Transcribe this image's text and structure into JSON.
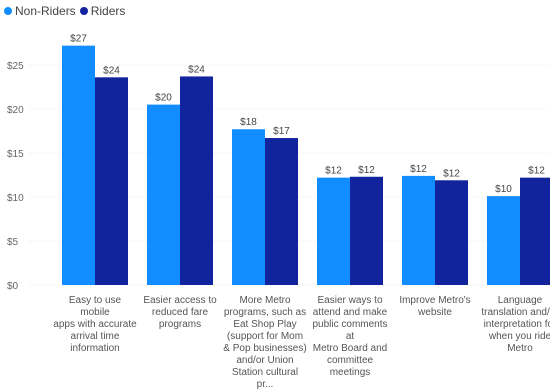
{
  "legend": [
    {
      "name": "Non-Riders",
      "color": "#118DFF"
    },
    {
      "name": "Riders",
      "color": "#12239E"
    }
  ],
  "chart_data": {
    "type": "bar",
    "categories": [
      "Easy to use mobile apps with accurate arrival time information",
      "Easier access to reduced fare programs",
      "More Metro programs, such as Eat Shop Play (support for Mom & Pop businesses) and/or Union Station cultural pr...",
      "Easier ways to attend and make public comments at Metro Board and committee meetings",
      "Improve Metro's website",
      "Language translation and/or interpretation for when you ride Metro"
    ],
    "category_lines": [
      [
        "Easy to use mobile",
        "apps with accurate",
        "arrival time",
        "information"
      ],
      [
        "Easier access to",
        "reduced fare",
        "programs"
      ],
      [
        "More Metro",
        "programs, such as",
        "Eat Shop Play",
        "(support for Mom",
        "& Pop businesses)",
        "and/or Union",
        "Station cultural pr..."
      ],
      [
        "Easier ways to",
        "attend and make",
        "public comments at",
        "Metro Board and",
        "committee",
        "meetings"
      ],
      [
        "Improve Metro's",
        "website"
      ],
      [
        "Language",
        "translation and/or",
        "interpretation for",
        "when you ride",
        "Metro"
      ]
    ],
    "series": [
      {
        "name": "Non-Riders",
        "color": "#118DFF",
        "values": [
          27.2,
          20.5,
          17.7,
          12.2,
          12.4,
          10.1
        ],
        "labels": [
          "$27",
          "$20",
          "$18",
          "$12",
          "$12",
          "$10"
        ]
      },
      {
        "name": "Riders",
        "color": "#12239E",
        "values": [
          23.6,
          23.7,
          16.7,
          12.3,
          11.9,
          12.2
        ],
        "labels": [
          "$24",
          "$24",
          "$17",
          "$12",
          "$12",
          "$12"
        ]
      }
    ],
    "yticks": [
      0,
      5,
      10,
      15,
      20,
      25
    ],
    "ytick_labels": [
      "$0",
      "$5",
      "$10",
      "$15",
      "$20",
      "$25"
    ],
    "ylim": [
      0,
      30
    ],
    "grid": true,
    "legend_position": "top-left",
    "title": "",
    "xlabel": "",
    "ylabel": ""
  }
}
